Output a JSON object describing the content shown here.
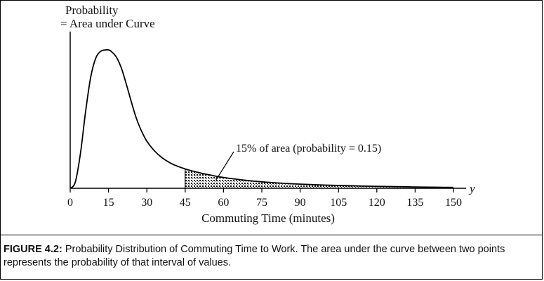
{
  "chart_data": {
    "type": "area",
    "ylabel_lines": [
      "Probability",
      "= Area under Curve"
    ],
    "xlabel": "Commuting Time (minutes)",
    "x_axis_symbol": "y",
    "xticks": [
      0,
      15,
      30,
      45,
      60,
      75,
      90,
      105,
      120,
      135,
      150
    ],
    "xlim": [
      0,
      150
    ],
    "grid": false,
    "legend": "none",
    "curve": {
      "x": [
        0,
        2,
        4,
        6,
        8,
        10,
        12,
        14,
        15,
        16,
        18,
        20,
        22,
        24,
        26,
        28,
        30,
        33,
        36,
        40,
        45,
        50,
        55,
        60,
        70,
        80,
        90,
        100,
        110,
        120,
        130,
        140,
        150
      ],
      "y": [
        0.0,
        0.045,
        0.25,
        0.55,
        0.8,
        0.94,
        0.99,
        1.0,
        1.0,
        0.99,
        0.95,
        0.87,
        0.75,
        0.62,
        0.5,
        0.41,
        0.34,
        0.27,
        0.22,
        0.175,
        0.14,
        0.115,
        0.095,
        0.078,
        0.055,
        0.04,
        0.03,
        0.023,
        0.018,
        0.014,
        0.011,
        0.008,
        0.006
      ]
    },
    "shaded_region": {
      "x_start": 45,
      "x_end": 150
    },
    "annotation": {
      "text": "15% of area (probability = 0.15)",
      "points_to_x": 57
    }
  },
  "caption": {
    "figure_label": "FIGURE 4.2:",
    "text": " Probability Distribution of Commuting Time to Work. The area under the curve between two points represents the probability of that interval of values."
  }
}
